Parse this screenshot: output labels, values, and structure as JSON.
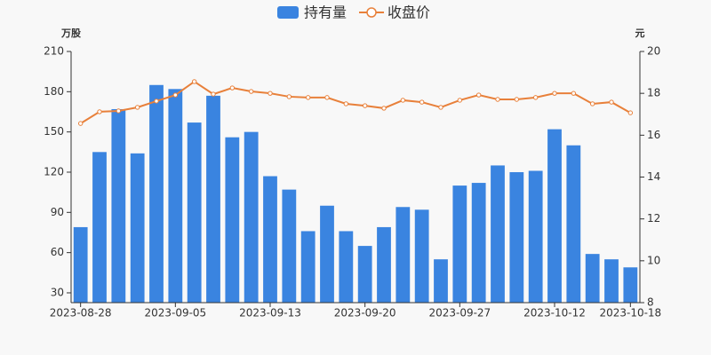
{
  "chart_data": {
    "type": "bar-line",
    "categories": [
      "2023-08-28",
      null,
      null,
      null,
      null,
      "2023-09-05",
      null,
      null,
      null,
      null,
      "2023-09-13",
      null,
      null,
      null,
      null,
      "2023-09-20",
      null,
      null,
      null,
      null,
      "2023-09-27",
      null,
      null,
      null,
      null,
      "2023-10-12",
      null,
      null,
      null,
      "2023-10-18"
    ],
    "series": [
      {
        "name": "持有量",
        "type": "bar",
        "color": "#3a84e0",
        "values": [
          79,
          135,
          167,
          134,
          185,
          182,
          157,
          177,
          146,
          150,
          117,
          107,
          76,
          95,
          76,
          65,
          79,
          94,
          92,
          55,
          110,
          112,
          125,
          120,
          121,
          152,
          140,
          59,
          55,
          49
        ]
      },
      {
        "name": "收盘价",
        "type": "line",
        "axis": "y2",
        "color": "#e8803a",
        "values": [
          16.56,
          17.12,
          17.16,
          17.33,
          17.63,
          17.92,
          18.56,
          17.96,
          18.26,
          18.09,
          18.0,
          17.84,
          17.8,
          17.8,
          17.5,
          17.41,
          17.29,
          17.67,
          17.58,
          17.33,
          17.67,
          17.92,
          17.71,
          17.71,
          17.8,
          18.0,
          18.0,
          17.5,
          17.58,
          17.07
        ]
      }
    ],
    "ylabel": "万股",
    "y2label": "元",
    "ylim": [
      22.7,
      210
    ],
    "yticks": [
      30,
      60,
      90,
      120,
      150,
      180,
      210
    ],
    "y2lim": [
      8,
      20
    ],
    "y2ticks": [
      8,
      10,
      12,
      14,
      16,
      18,
      20
    ]
  }
}
